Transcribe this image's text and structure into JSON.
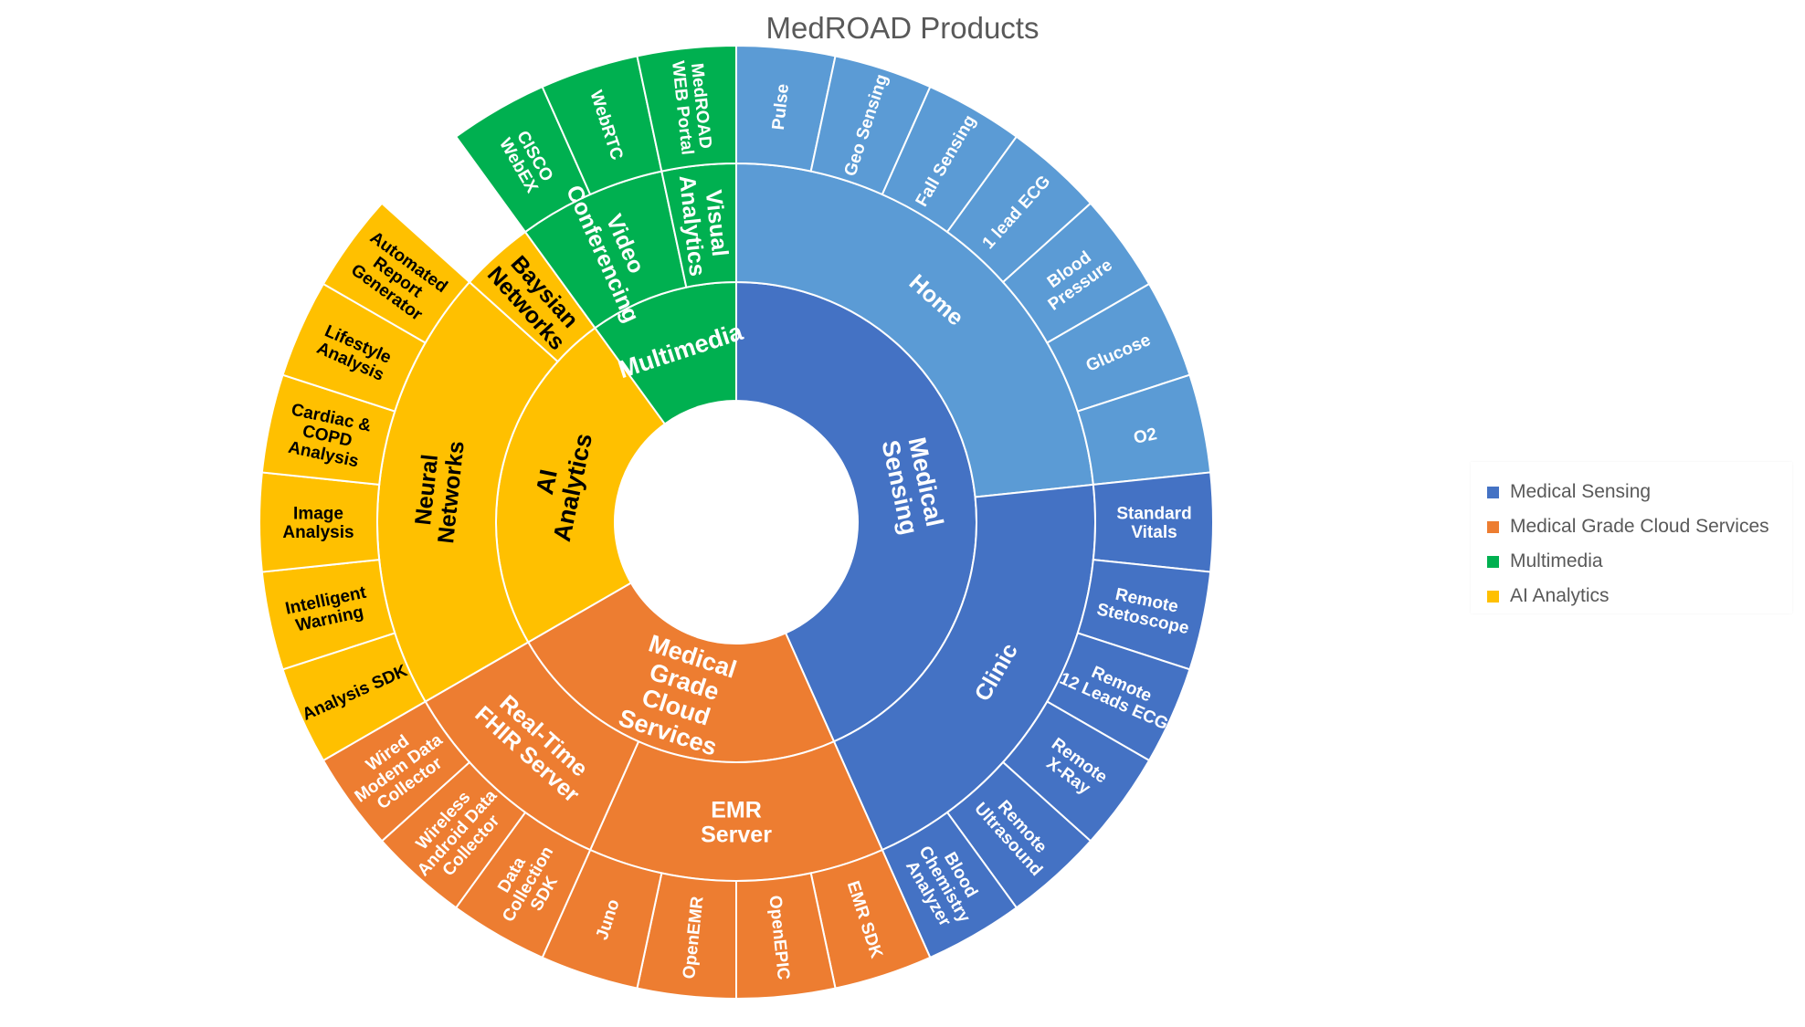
{
  "chart_data": {
    "type": "sunburst",
    "title": "MedROAD Products",
    "legend": {
      "placement": "right"
    },
    "colors": {
      "Medical Sensing": "#4472C4",
      "Home": "#5B9BD5",
      "Medical Grade Cloud Services": "#ED7D31",
      "Multimedia": "#00B050",
      "AI Analytics": "#FFC000"
    },
    "legend_entries": [
      {
        "name": "Medical Sensing",
        "color": "#4472C4"
      },
      {
        "name": "Medical Grade Cloud Services",
        "color": "#ED7D31"
      },
      {
        "name": "Multimedia",
        "color": "#00B050"
      },
      {
        "name": "AI Analytics",
        "color": "#FFC000"
      }
    ],
    "root": [
      {
        "name": "Medical Sensing",
        "lines": [
          "Medical",
          "Sensing"
        ],
        "children": [
          {
            "name": "Home",
            "lines": [
              "Home"
            ],
            "color": "#5B9BD5",
            "children": [
              {
                "name": "Pulse",
                "lines": [
                  "Pulse"
                ]
              },
              {
                "name": "Geo Sensing",
                "lines": [
                  "Geo Sensing"
                ]
              },
              {
                "name": "Fall Sensing",
                "lines": [
                  "Fall Sensing"
                ]
              },
              {
                "name": "1 lead ECG",
                "lines": [
                  "1 lead ECG"
                ]
              },
              {
                "name": "Blood Pressure",
                "lines": [
                  "Blood",
                  "Pressure"
                ]
              },
              {
                "name": "Glucose",
                "lines": [
                  "Glucose"
                ]
              },
              {
                "name": "O2",
                "lines": [
                  "O2"
                ]
              }
            ]
          },
          {
            "name": "Clinic",
            "lines": [
              "Clinic"
            ],
            "children": [
              {
                "name": "Standard Vitals",
                "lines": [
                  "Standard",
                  "Vitals"
                ]
              },
              {
                "name": "Remote Stetoscope",
                "lines": [
                  "Remote",
                  "Stetoscope"
                ]
              },
              {
                "name": "Remote 12 Leads ECG",
                "lines": [
                  "Remote",
                  "12 Leads ECG"
                ]
              },
              {
                "name": "Remote X-Ray",
                "lines": [
                  "Remote",
                  "X-Ray"
                ]
              },
              {
                "name": "Remote Ultrasound",
                "lines": [
                  "Remote",
                  "Ultrasound"
                ]
              },
              {
                "name": "Blood Chemistry Analyzer",
                "lines": [
                  "Blood",
                  "Chemistry",
                  "Analyzer"
                ]
              }
            ]
          }
        ]
      },
      {
        "name": "Medical Grade Cloud Services",
        "lines": [
          "Medical",
          "Grade",
          "Cloud",
          "Services"
        ],
        "children": [
          {
            "name": "EMR Server",
            "lines": [
              "EMR",
              "Server"
            ],
            "children": [
              {
                "name": "EMR SDK",
                "lines": [
                  "EMR SDK"
                ]
              },
              {
                "name": "OpenEPIC",
                "lines": [
                  "OpenEPIC"
                ]
              },
              {
                "name": "OpenEMR",
                "lines": [
                  "OpenEMR"
                ]
              },
              {
                "name": "Juno",
                "lines": [
                  "Juno"
                ]
              }
            ]
          },
          {
            "name": "Real-Time FHIR Server",
            "lines": [
              "Real-Time",
              "FHIR Server"
            ],
            "children": [
              {
                "name": "Data Collection SDK",
                "lines": [
                  "Data",
                  "Collection",
                  "SDK"
                ]
              },
              {
                "name": "Wireless Android Data Collector",
                "lines": [
                  "Wireless",
                  "Android Data",
                  "Collector"
                ]
              },
              {
                "name": "Wired Modem Data Collector",
                "lines": [
                  "Wired",
                  "Modem Data",
                  "Collector"
                ]
              }
            ]
          }
        ]
      },
      {
        "name": "AI Analytics",
        "lines": [
          "AI",
          "Analytics"
        ],
        "children": [
          {
            "name": "Neural Networks",
            "lines": [
              "Neural",
              "Networks"
            ],
            "children": [
              {
                "name": "Analysis SDK",
                "lines": [
                  "Analysis SDK"
                ]
              },
              {
                "name": "Intelligent Warning",
                "lines": [
                  "Intelligent",
                  "Warning"
                ]
              },
              {
                "name": "Image Analysis",
                "lines": [
                  "Image",
                  "Analysis"
                ]
              },
              {
                "name": "Cardiac & COPD Analysis",
                "lines": [
                  "Cardiac &",
                  "COPD",
                  "Analysis"
                ]
              },
              {
                "name": "Lifestyle Analysis",
                "lines": [
                  "Lifestyle",
                  "Analysis"
                ]
              },
              {
                "name": "Automated Report Generator",
                "lines": [
                  "Automated",
                  "Report",
                  "Generator"
                ]
              }
            ]
          },
          {
            "name": "Baysian Networks",
            "lines": [
              "Baysian",
              "Networks"
            ],
            "children": []
          }
        ]
      },
      {
        "name": "Multimedia",
        "lines": [
          "Multimedia"
        ],
        "children": [
          {
            "name": "Video Conferencing",
            "lines": [
              "Video",
              "Conferencing"
            ],
            "children": [
              {
                "name": "CISCO WebEX",
                "lines": [
                  "CISCO",
                  "WebEX"
                ]
              },
              {
                "name": "WebRTC",
                "lines": [
                  "WebRTC"
                ]
              }
            ]
          },
          {
            "name": "Visual Analytics",
            "lines": [
              "Visual",
              "Analytics"
            ],
            "children": [
              {
                "name": "MedROAD WEB Portal",
                "lines": [
                  "MedROAD",
                  "WEB Portal"
                ]
              }
            ]
          }
        ]
      }
    ]
  }
}
